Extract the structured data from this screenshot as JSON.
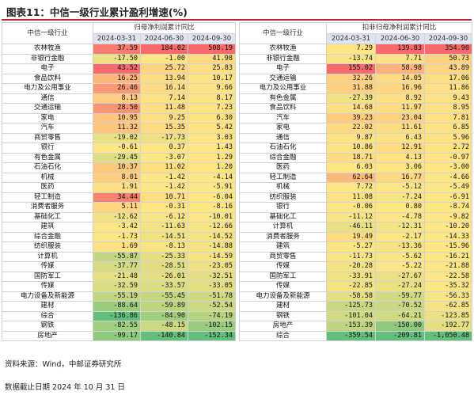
{
  "title": "图表11：中信一级行业累计盈利增速(%)",
  "left": {
    "name_header": "中信一级行业",
    "group_header": "归母净利润累计同比",
    "dates": [
      "2024-03-31",
      "2024-06-30",
      "2024-09-30"
    ],
    "rows": [
      {
        "name": "农林牧渔",
        "values": [
          "37.59",
          "184.02",
          "508.19"
        ]
      },
      {
        "name": "非银行金融",
        "values": [
          "-17.50",
          "-1.00",
          "41.98"
        ]
      },
      {
        "name": "电子",
        "values": [
          "43.52",
          "25.72",
          "25.83"
        ]
      },
      {
        "name": "食品饮料",
        "values": [
          "16.25",
          "13.94",
          "10.17"
        ]
      },
      {
        "name": "电力及公用事业",
        "values": [
          "26.46",
          "16.14",
          "9.66"
        ]
      },
      {
        "name": "通信",
        "values": [
          "8.13",
          "7.14",
          "8.17"
        ]
      },
      {
        "name": "交通运输",
        "values": [
          "28.50",
          "11.48",
          "7.23"
        ]
      },
      {
        "name": "家电",
        "values": [
          "10.95",
          "9.25",
          "6.30"
        ]
      },
      {
        "name": "汽车",
        "values": [
          "11.32",
          "15.35",
          "5.42"
        ]
      },
      {
        "name": "商贸零售",
        "values": [
          "-19.02",
          "-17.73",
          "3.03"
        ]
      },
      {
        "name": "银行",
        "values": [
          "-0.61",
          "0.37",
          "1.43"
        ]
      },
      {
        "name": "有色金属",
        "values": [
          "-29.45",
          "-3.07",
          "1.29"
        ]
      },
      {
        "name": "石油石化",
        "values": [
          "10.37",
          "11.02",
          "1.20"
        ]
      },
      {
        "name": "机械",
        "values": [
          "8.01",
          "-1.42",
          "-4.14"
        ]
      },
      {
        "name": "医药",
        "values": [
          "1.91",
          "-1.42",
          "-5.91"
        ]
      },
      {
        "name": "轻工制造",
        "values": [
          "34.44",
          "10.71",
          "-6.04"
        ]
      },
      {
        "name": "消费者服务",
        "values": [
          "5.11",
          "-0.31",
          "-8.16"
        ]
      },
      {
        "name": "基础化工",
        "values": [
          "-12.62",
          "-6.12",
          "-10.01"
        ]
      },
      {
        "name": "建筑",
        "values": [
          "-3.42",
          "-11.63",
          "-12.66"
        ]
      },
      {
        "name": "综合金融",
        "values": [
          "-1.73",
          "-14.51",
          "-14.52"
        ]
      },
      {
        "name": "纺织服装",
        "values": [
          "1.69",
          "-8.13",
          "-14.88"
        ]
      },
      {
        "name": "计算机",
        "values": [
          "-55.87",
          "-25.33",
          "-14.59"
        ]
      },
      {
        "name": "传媒",
        "values": [
          "-37.77",
          "-28.51",
          "-23.05"
        ]
      },
      {
        "name": "国防军工",
        "values": [
          "-21.48",
          "-26.01",
          "-32.51"
        ]
      },
      {
        "name": "传媒",
        "values": [
          "-32.59",
          "-33.57",
          "-33.05"
        ]
      },
      {
        "name": "电力设备及新能源",
        "values": [
          "-55.19",
          "-55.45",
          "-51.78"
        ]
      },
      {
        "name": "建材",
        "values": [
          "-88.64",
          "-59.89",
          "-52.54"
        ]
      },
      {
        "name": "综合",
        "values": [
          "-136.86",
          "-84.90",
          "-74.19"
        ]
      },
      {
        "name": "钢铁",
        "values": [
          "-82.55",
          "-48.15",
          "-102.15"
        ]
      },
      {
        "name": "房地产",
        "values": [
          "-99.17",
          "-140.84",
          "-152.34"
        ]
      }
    ]
  },
  "right": {
    "name_header": "中信一级行业",
    "group_header": "扣非归母净利润累计同比",
    "dates": [
      "2024-03-31",
      "2024-06-30",
      "2024-09-30"
    ],
    "rows": [
      {
        "name": "农林牧渔",
        "values": [
          "7.29",
          "139.83",
          "354.90"
        ]
      },
      {
        "name": "非银行金融",
        "values": [
          "-13.74",
          "7.71",
          "50.73"
        ]
      },
      {
        "name": "电子",
        "values": [
          "155.02",
          "58.98",
          "43.89"
        ]
      },
      {
        "name": "交通运输",
        "values": [
          "32.26",
          "14.05",
          "17.06"
        ]
      },
      {
        "name": "电力及公用事业",
        "values": [
          "31.88",
          "16.96",
          "11.86"
        ]
      },
      {
        "name": "有色金属",
        "values": [
          "-27.39",
          "8.92",
          "9.43"
        ]
      },
      {
        "name": "食品饮料",
        "values": [
          "14.68",
          "11.97",
          "8.95"
        ]
      },
      {
        "name": "汽车",
        "values": [
          "39.23",
          "23.04",
          "7.81"
        ]
      },
      {
        "name": "家电",
        "values": [
          "22.02",
          "11.61",
          "6.85"
        ]
      },
      {
        "name": "通信",
        "values": [
          "9.87",
          "6.43",
          "5.96"
        ]
      },
      {
        "name": "石油石化",
        "values": [
          "10.86",
          "12.91",
          "2.72"
        ]
      },
      {
        "name": "综合金融",
        "values": [
          "18.71",
          "4.13",
          "-0.97"
        ]
      },
      {
        "name": "医药",
        "values": [
          "6.03",
          "3.06",
          "-3.00"
        ]
      },
      {
        "name": "轻工制造",
        "values": [
          "62.64",
          "16.77",
          "-4.66"
        ]
      },
      {
        "name": "机械",
        "values": [
          "7.72",
          "-5.12",
          "-5.49"
        ]
      },
      {
        "name": "纺织服装",
        "values": [
          "11.08",
          "-7.24",
          "-6.91"
        ]
      },
      {
        "name": "银行",
        "values": [
          "-0.06",
          "0.80",
          "-8.74"
        ]
      },
      {
        "name": "基础化工",
        "values": [
          "-11.12",
          "-4.78",
          "-9.82"
        ]
      },
      {
        "name": "计算机",
        "values": [
          "-46.11",
          "-12.31",
          "-10.20"
        ]
      },
      {
        "name": "消费者服务",
        "values": [
          "19.49",
          "-2.17",
          "-14.33"
        ]
      },
      {
        "name": "建筑",
        "values": [
          "-5.27",
          "-13.36",
          "-15.96"
        ]
      },
      {
        "name": "商贸零售",
        "values": [
          "-11.73",
          "-5.62",
          "-16.21"
        ]
      },
      {
        "name": "传媒",
        "values": [
          "-20.28",
          "-5.22",
          "-21.88"
        ]
      },
      {
        "name": "国防军工",
        "values": [
          "-33.91",
          "-27.67",
          "-22.58"
        ]
      },
      {
        "name": "传媒",
        "values": [
          "-22.85",
          "-27.24",
          "-35.32"
        ]
      },
      {
        "name": "电力设备及新能源",
        "values": [
          "-58.58",
          "-59.77",
          "-56.33"
        ]
      },
      {
        "name": "建材",
        "values": [
          "-125.73",
          "-70.52",
          "-62.85"
        ]
      },
      {
        "name": "钢铁",
        "values": [
          "-101.04",
          "-64.21",
          "-123.85"
        ]
      },
      {
        "name": "房地产",
        "values": [
          "-153.39",
          "-150.00",
          "-192.77"
        ]
      },
      {
        "name": "综合",
        "values": [
          "-359.54",
          "-209.81",
          "-1,050.48"
        ]
      }
    ]
  },
  "footer": {
    "source": "资料来源：Wind，中邮证券研究所",
    "data_date": "数据截止日期 2024 年 10 月 31 日"
  }
}
